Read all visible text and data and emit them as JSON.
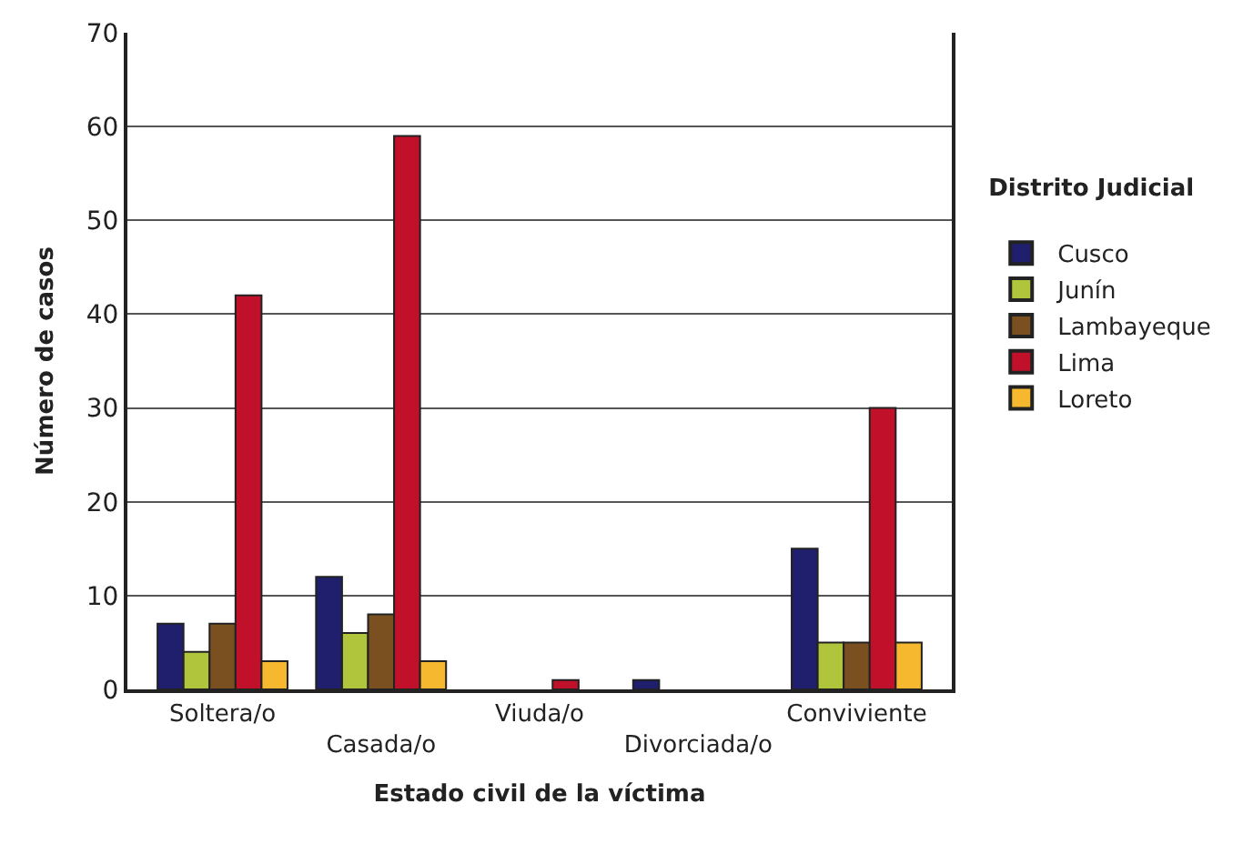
{
  "chart_data": {
    "type": "bar",
    "xlabel": "Estado civil de la víctima",
    "ylabel": "Número de casos",
    "legend_title": "Distrito Judicial",
    "legend": "right",
    "grid": "y",
    "categories": [
      "Soltera/o",
      "Casada/o",
      "Viuda/o",
      "Divorciada/o",
      "Conviviente"
    ],
    "ylim": [
      0,
      70
    ],
    "yticks": [
      0,
      10,
      20,
      30,
      40,
      50,
      60,
      70
    ],
    "series": [
      {
        "name": "Cusco",
        "color": "#1f1f6e",
        "values": [
          7,
          12,
          null,
          1,
          15
        ]
      },
      {
        "name": "Junín",
        "color": "#b0c43c",
        "values": [
          4,
          6,
          null,
          null,
          5
        ]
      },
      {
        "name": "Lambayeque",
        "color": "#7a5020",
        "values": [
          7,
          8,
          null,
          null,
          5
        ]
      },
      {
        "name": "Lima",
        "color": "#c0102a",
        "values": [
          42,
          59,
          1,
          null,
          30
        ]
      },
      {
        "name": "Loreto",
        "color": "#f5b82e",
        "values": [
          3,
          3,
          null,
          null,
          5
        ]
      }
    ]
  }
}
